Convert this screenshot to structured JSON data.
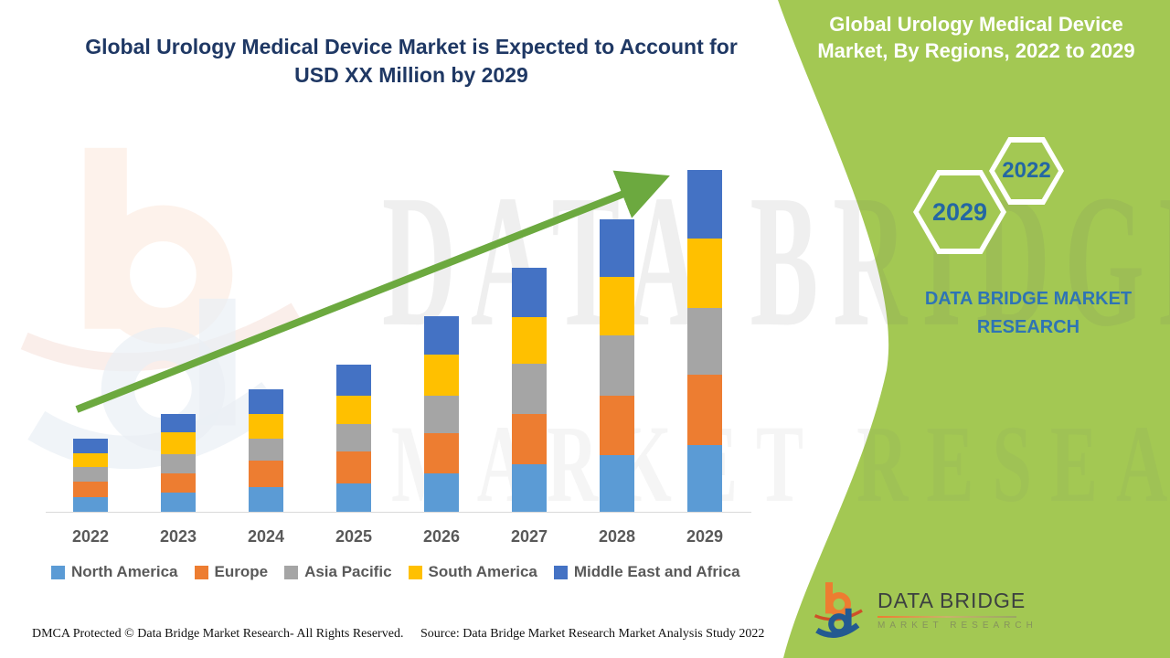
{
  "colors": {
    "panel_green": "#A3C853",
    "title_navy": "#1F3864",
    "brand_blue": "#2E74B5",
    "hexagon_text": "#2467A3",
    "axis_text": "#595959",
    "axis_line": "#D9D9D9",
    "arrow_green": "#6CA93F"
  },
  "header": {
    "title_line1": "Global Urology Medical Device Market is Expected to Account for",
    "title_line2": "USD XX Million by 2029"
  },
  "side_panel": {
    "title_line1": "Global Urology Medical Device",
    "title_line2": "Market, By Regions, 2022 to 2029",
    "hexagons": [
      {
        "label": "2029"
      },
      {
        "label": "2022"
      }
    ],
    "brand_line1": "DATA BRIDGE MARKET",
    "brand_line2": "RESEARCH"
  },
  "chart_data": {
    "type": "bar",
    "stacked": true,
    "title": "Global Urology Medical Device Market, By Regions, 2022 to 2029",
    "xlabel": "",
    "ylabel": "",
    "y_axis_visible": false,
    "gridlines": false,
    "legend_position": "bottom",
    "units_note": "y-axis unlabeled in source (USD XX Million); values are relative estimated units",
    "ylim": [
      0,
      400
    ],
    "categories": [
      "2022",
      "2023",
      "2024",
      "2025",
      "2026",
      "2027",
      "2028",
      "2029"
    ],
    "series": [
      {
        "name": "North America",
        "color": "#5B9BD5",
        "values": [
          16,
          21,
          27,
          31,
          42,
          52,
          62,
          73
        ]
      },
      {
        "name": "Europe",
        "color": "#ED7D31",
        "values": [
          17,
          21,
          29,
          35,
          44,
          55,
          65,
          77
        ]
      },
      {
        "name": "Asia Pacific",
        "color": "#A5A5A5",
        "values": [
          16,
          21,
          24,
          30,
          41,
          55,
          66,
          73
        ]
      },
      {
        "name": "South America",
        "color": "#FFC000",
        "values": [
          15,
          24,
          27,
          31,
          45,
          51,
          64,
          76
        ]
      },
      {
        "name": "Middle East and Africa",
        "color": "#4472C4",
        "values": [
          16,
          20,
          27,
          34,
          42,
          54,
          63,
          75
        ]
      }
    ],
    "totals": [
      80,
      107,
      134,
      161,
      214,
      267,
      320,
      374
    ],
    "trend_arrow": true
  },
  "watermark": {
    "line1": "DATA BRIDGE",
    "line2": "MARKET RESEARCH"
  },
  "footer": {
    "dmca_text": "DMCA Protected © Data Bridge Market Research- All Rights Reserved.",
    "source_text": "Source: Data Bridge Market Research Market Analysis Study 2022"
  },
  "logo": {
    "title": "DATA BRIDGE",
    "subtitle": "MARKET RESEARCH"
  }
}
